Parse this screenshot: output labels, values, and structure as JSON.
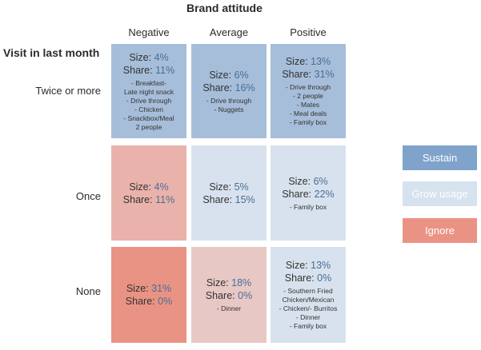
{
  "title": "Brand attitude",
  "row_axis_label": "Visit in last month",
  "columns": [
    "Negative",
    "Average",
    "Positive"
  ],
  "rows": [
    "Twice or more",
    "Once",
    "None"
  ],
  "size_label": "Size:",
  "share_label": "Share:",
  "colors": {
    "sustain": "#a6bed9",
    "grow": "#d8e2ee",
    "ignore_light": "#e9b2ab",
    "ignore": "#e99384",
    "ignore_medium": "#e7c8c5",
    "legend_sustain": "#7fa3ca",
    "legend_grow": "#d7e2ef",
    "legend_ignore": "#ea9384"
  },
  "cells": [
    [
      {
        "size": "4%",
        "share": "11%",
        "notes": [
          "- Breakfast-",
          "Late night snack",
          "- Drive through",
          "- Chicken",
          "- Snackbox/Meal",
          "2 people"
        ]
      },
      {
        "size": "6%",
        "share": "16%",
        "notes": [
          "- Drive through",
          "- Nuggets"
        ]
      },
      {
        "size": "13%",
        "share": "31%",
        "notes": [
          "- Drive through",
          "- 2 people",
          "- Mates",
          "- Meal deals",
          "- Family box"
        ]
      }
    ],
    [
      {
        "size": "4%",
        "share": "11%",
        "notes": []
      },
      {
        "size": "5%",
        "share": "15%",
        "notes": []
      },
      {
        "size": "6%",
        "share": "22%",
        "notes": [
          "- Family box"
        ]
      }
    ],
    [
      {
        "size": "31%",
        "share": "0%",
        "notes": []
      },
      {
        "size": "18%",
        "share": "0%",
        "notes": [
          "- Dinner"
        ]
      },
      {
        "size": "13%",
        "share": "0%",
        "notes": [
          "- Southern Fried",
          "Chicken/Mexican",
          "- Chicken/- Burritos",
          "- Dinner",
          "- Family box"
        ]
      }
    ]
  ],
  "legend": [
    "Sustain",
    "Grow usage",
    "Ignore"
  ]
}
